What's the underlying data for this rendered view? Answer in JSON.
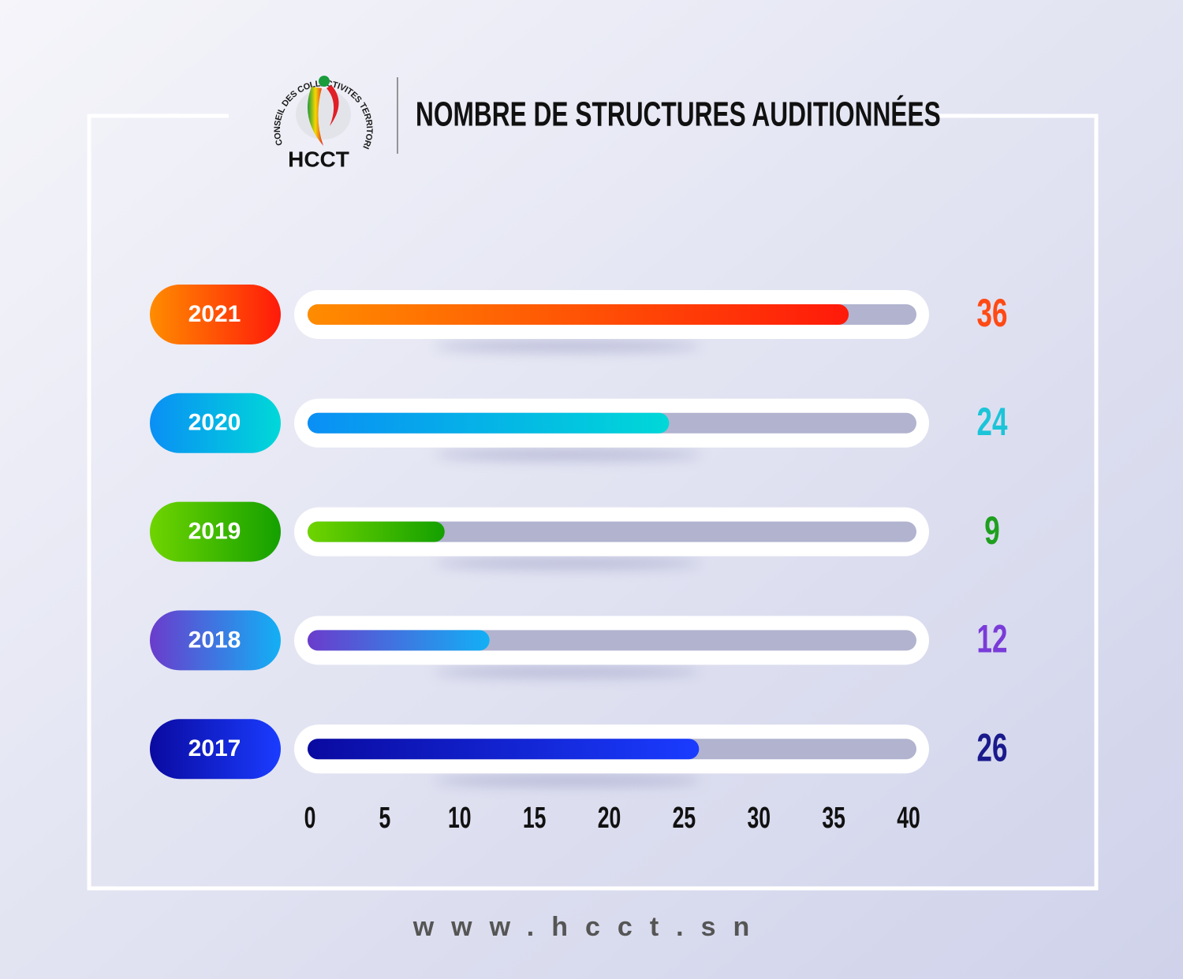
{
  "logo": {
    "arc_text": "HAUT CONSEIL DES COLLECTIVITES TERRITORIALES",
    "name": "HCCT"
  },
  "chart_data": {
    "type": "bar",
    "orientation": "horizontal",
    "title": "NOMBRE DE STRUCTURES AUDITIONNÉES",
    "categories": [
      "2021",
      "2020",
      "2019",
      "2018",
      "2017"
    ],
    "values": [
      36,
      24,
      9,
      12,
      26
    ],
    "gradients": [
      [
        "#ff8c00",
        "#ff1a0a"
      ],
      [
        "#0a8ff5",
        "#00d8d8"
      ],
      [
        "#6fd400",
        "#14a000"
      ],
      [
        "#6a3ccc",
        "#12b0f5"
      ],
      [
        "#0a0aa0",
        "#1a3cff"
      ]
    ],
    "label_colors": [
      "#ff4a14",
      "#1cc4d8",
      "#1ea01e",
      "#7a3cd8",
      "#1a1a8c"
    ],
    "track_color": "#b1b3cf",
    "xlim": [
      0,
      40
    ],
    "xticks": [
      0,
      5,
      10,
      15,
      20,
      25,
      30,
      35,
      40
    ]
  },
  "footer": {
    "website": "www.hcct.sn"
  }
}
